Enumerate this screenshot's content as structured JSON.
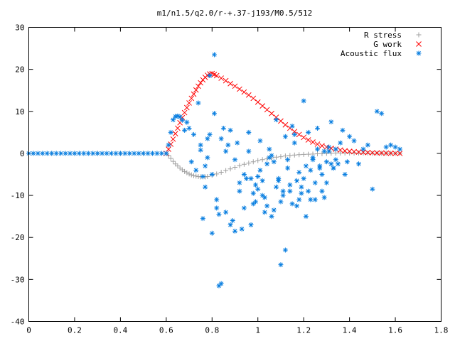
{
  "chart_data": {
    "type": "scatter",
    "title": "m1/n1.5/q2.0/r-+.37-j193/M0.5/512",
    "xlabel": "",
    "ylabel": "",
    "xlim": [
      0,
      1.8
    ],
    "ylim": [
      -40,
      30
    ],
    "x_ticks": [
      "0",
      "0.2",
      "0.4",
      "0.6",
      "0.8",
      "1",
      "1.2",
      "1.4",
      "1.6",
      "1.8"
    ],
    "y_ticks": [
      "30",
      "20",
      "10",
      "0",
      "-10",
      "-20",
      "-30",
      "-40"
    ],
    "grid": false,
    "legend_position": "top-right",
    "series": [
      {
        "name": "R stress",
        "marker": "plus",
        "color": "#a0a0a0",
        "x": [
          0.0,
          0.1,
          0.2,
          0.3,
          0.4,
          0.5,
          0.6,
          0.61,
          0.62,
          0.63,
          0.64,
          0.65,
          0.66,
          0.67,
          0.68,
          0.69,
          0.7,
          0.71,
          0.72,
          0.73,
          0.74,
          0.75,
          0.76,
          0.77,
          0.78,
          0.8,
          0.82,
          0.84,
          0.86,
          0.88,
          0.9,
          0.92,
          0.94,
          0.96,
          0.98,
          1.0,
          1.02,
          1.04,
          1.06,
          1.08,
          1.1,
          1.12,
          1.14,
          1.16,
          1.18,
          1.2,
          1.22,
          1.24,
          1.26,
          1.28,
          1.3,
          1.32,
          1.34,
          1.36,
          1.38,
          1.4,
          1.42,
          1.44,
          1.46,
          1.48,
          1.5,
          1.52,
          1.54,
          1.56,
          1.58,
          1.6,
          1.62
        ],
        "y": [
          0,
          0,
          0,
          0,
          0,
          0,
          0,
          -0.5,
          -1.2,
          -1.9,
          -2.5,
          -3.0,
          -3.5,
          -3.9,
          -4.3,
          -4.6,
          -4.9,
          -5.1,
          -5.3,
          -5.4,
          -5.5,
          -5.6,
          -5.6,
          -5.6,
          -5.5,
          -5.2,
          -4.9,
          -4.5,
          -4.1,
          -3.7,
          -3.3,
          -2.9,
          -2.6,
          -2.3,
          -2.0,
          -1.7,
          -1.5,
          -1.3,
          -1.1,
          -0.9,
          -0.8,
          -0.6,
          -0.5,
          -0.4,
          -0.3,
          -0.25,
          -0.2,
          -0.15,
          -0.1,
          -0.05,
          0,
          0.05,
          0.1,
          0.1,
          0.1,
          0.1,
          0.1,
          0.1,
          0.1,
          0.1,
          0.05,
          0.05,
          0.05,
          0.05,
          0,
          0,
          0
        ]
      },
      {
        "name": "G work",
        "marker": "cross",
        "color": "#ff0000",
        "x": [
          0.6,
          0.61,
          0.62,
          0.63,
          0.64,
          0.65,
          0.66,
          0.67,
          0.68,
          0.69,
          0.7,
          0.71,
          0.72,
          0.73,
          0.74,
          0.75,
          0.76,
          0.77,
          0.78,
          0.79,
          0.8,
          0.81,
          0.82,
          0.84,
          0.86,
          0.88,
          0.9,
          0.92,
          0.94,
          0.96,
          0.98,
          1.0,
          1.02,
          1.04,
          1.06,
          1.08,
          1.1,
          1.12,
          1.14,
          1.16,
          1.18,
          1.2,
          1.22,
          1.24,
          1.26,
          1.28,
          1.3,
          1.32,
          1.34,
          1.36,
          1.38,
          1.4,
          1.42,
          1.44,
          1.46,
          1.48,
          1.5,
          1.52,
          1.54,
          1.56,
          1.58,
          1.6,
          1.62
        ],
        "y": [
          0,
          1.0,
          2.2,
          3.4,
          4.7,
          6.0,
          7.3,
          8.5,
          9.7,
          10.9,
          12.0,
          13.1,
          14.1,
          15.1,
          16.0,
          16.8,
          17.5,
          18.1,
          18.6,
          18.9,
          19.0,
          18.8,
          18.5,
          17.9,
          17.3,
          16.6,
          16.0,
          15.3,
          14.6,
          13.9,
          13.1,
          12.2,
          11.3,
          10.4,
          9.5,
          8.6,
          7.7,
          6.8,
          6.0,
          5.2,
          4.5,
          3.8,
          3.2,
          2.7,
          2.2,
          1.8,
          1.5,
          1.2,
          1.0,
          0.8,
          0.6,
          0.5,
          0.4,
          0.3,
          0.25,
          0.2,
          0.15,
          0.1,
          0.1,
          0.05,
          0.05,
          0,
          0
        ]
      },
      {
        "name": "Acoustic flux",
        "marker": "star",
        "color": "#0a7fe0",
        "x": [
          0.0,
          0.02,
          0.04,
          0.06,
          0.08,
          0.1,
          0.12,
          0.14,
          0.16,
          0.18,
          0.2,
          0.22,
          0.24,
          0.26,
          0.28,
          0.3,
          0.32,
          0.34,
          0.36,
          0.38,
          0.4,
          0.42,
          0.44,
          0.46,
          0.48,
          0.5,
          0.52,
          0.54,
          0.56,
          0.58,
          0.6,
          0.61,
          0.62,
          0.63,
          0.64,
          0.65,
          0.66,
          0.67,
          0.68,
          0.69,
          0.7,
          0.71,
          0.72,
          0.73,
          0.74,
          0.75,
          0.76,
          0.77,
          0.78,
          0.79,
          0.8,
          0.81,
          0.82,
          0.83,
          0.84,
          0.85,
          0.86,
          0.87,
          0.88,
          0.89,
          0.9,
          0.91,
          0.92,
          0.93,
          0.94,
          0.95,
          0.96,
          0.97,
          0.98,
          0.99,
          1.0,
          1.01,
          1.02,
          1.03,
          1.04,
          1.05,
          1.06,
          1.07,
          1.08,
          1.09,
          1.1,
          1.11,
          1.12,
          1.13,
          1.14,
          1.15,
          1.16,
          1.17,
          1.18,
          1.19,
          1.2,
          1.21,
          1.22,
          1.23,
          1.24,
          1.25,
          1.26,
          1.27,
          1.28,
          1.29,
          1.3,
          1.31,
          1.32,
          1.33,
          1.34,
          1.35,
          1.36,
          1.37,
          1.38,
          1.39,
          1.4,
          1.42,
          1.44,
          1.46,
          1.48,
          1.5,
          1.52,
          1.54,
          1.56,
          1.58,
          1.6,
          1.62,
          0.75,
          0.76,
          0.77,
          0.78,
          0.79,
          0.8,
          0.81,
          0.82,
          0.83,
          0.84,
          0.86,
          0.88,
          0.9,
          0.92,
          0.94,
          0.96,
          0.97,
          0.98,
          0.99,
          1.0,
          1.01,
          1.02,
          1.03,
          1.04,
          1.05,
          1.06,
          1.07,
          1.08,
          1.09,
          1.1,
          1.11,
          1.12,
          1.13,
          1.14,
          1.15,
          1.16,
          1.17,
          1.18,
          1.19,
          1.2,
          1.21,
          1.22,
          1.23,
          1.24,
          1.25,
          1.26,
          1.27,
          1.28,
          1.29,
          1.3,
          1.31,
          1.32,
          1.33,
          1.34
        ],
        "y": [
          0,
          0,
          0,
          0,
          0,
          0,
          0,
          0,
          0,
          0,
          0,
          0,
          0,
          0,
          0,
          0,
          0,
          0,
          0,
          0,
          0,
          0,
          0,
          0,
          0,
          0,
          0,
          0,
          0,
          0,
          0,
          2.0,
          5.0,
          8.0,
          8.8,
          8.9,
          8.7,
          7.9,
          5.5,
          7.4,
          6.0,
          -2.0,
          4.5,
          -4.0,
          12.0,
          2.0,
          -15.5,
          -8.0,
          3.5,
          18.5,
          -19.0,
          23.5,
          -13.0,
          -31.5,
          -31.0,
          6.0,
          -14.0,
          2.0,
          5.5,
          -16.0,
          -1.5,
          2.5,
          -9.0,
          -18.0,
          -13.0,
          -6.0,
          0.5,
          -17.0,
          -12.0,
          -7.5,
          -8.5,
          -4.0,
          -6.5,
          -10.5,
          -12.5,
          -1.0,
          -15.0,
          -2.0,
          8.0,
          -6.0,
          -26.5,
          -10.0,
          -23.0,
          -3.5,
          -9.0,
          -12.0,
          4.5,
          -6.5,
          -11.0,
          -8.0,
          12.5,
          -15.0,
          -9.0,
          -4.0,
          -1.5,
          -11.0,
          6.0,
          -3.0,
          -9.0,
          -10.5,
          -7.0,
          0.5,
          7.5,
          -3.5,
          1.0,
          -2.5,
          2.5,
          5.5,
          -5.0,
          -2.0,
          4.0,
          3.0,
          -2.5,
          1.0,
          2.0,
          -8.5,
          10.0,
          9.5,
          1.5,
          2.0,
          1.5,
          1.0,
          0.8,
          -5.5,
          -3.0,
          -1.0,
          4.5,
          -5.0,
          9.5,
          -11.0,
          -14.5,
          3.5,
          0.5,
          -17.0,
          -18.5,
          -7.0,
          -5.0,
          5.0,
          -6.0,
          -9.5,
          -11.5,
          -5.5,
          3.0,
          -10.0,
          -14.0,
          -2.5,
          1.0,
          -0.5,
          -13.5,
          -8.0,
          -6.5,
          -11.5,
          -9.0,
          4.0,
          -1.5,
          -7.5,
          6.5,
          2.5,
          -12.5,
          -4.5,
          -9.5,
          -6.0,
          -3.0,
          5.0,
          -11.0,
          -1.0,
          -7.0,
          1.0,
          -3.5,
          -5.0,
          0.5,
          -2.0,
          1.5,
          -2.5,
          -3.5,
          -1.5
        ]
      }
    ]
  }
}
